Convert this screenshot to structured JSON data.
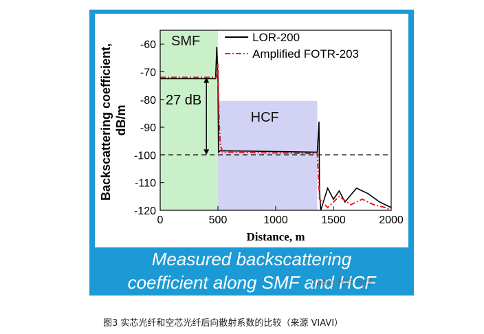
{
  "chart_data": {
    "type": "line",
    "ylabel_line1": "Backscattering coefficient,",
    "ylabel_line2": "dB/m",
    "xlabel": "Distance, m",
    "xlim": [
      0,
      2000
    ],
    "ylim": [
      -120,
      -55
    ],
    "xticks": [
      0,
      500,
      1000,
      1500,
      2000
    ],
    "yticks": [
      -60,
      -70,
      -80,
      -90,
      -100,
      -110,
      -120
    ],
    "legend_position": "top-right",
    "grid": false,
    "regions": [
      {
        "name": "SMF",
        "x0": 0,
        "x1": 500,
        "color": "#c9f0c9"
      },
      {
        "name": "HCF",
        "x0": 500,
        "x1": 1360,
        "color": "#d2d2f5"
      }
    ],
    "reference_level": -100,
    "annotation": {
      "text": "27 dB",
      "y_top": -72,
      "y_bottom": -100,
      "x": 400
    },
    "series": [
      {
        "name": "LOR-200",
        "color": "#000000",
        "style": "solid",
        "points": [
          [
            0,
            -72.5
          ],
          [
            480,
            -72.5
          ],
          [
            490,
            -61
          ],
          [
            500,
            -72.5
          ],
          [
            505,
            -99
          ],
          [
            520,
            -98.5
          ],
          [
            1360,
            -99
          ],
          [
            1375,
            -88
          ],
          [
            1380,
            -113
          ],
          [
            1390,
            -120
          ],
          [
            1450,
            -112
          ],
          [
            1500,
            -116
          ],
          [
            1550,
            -113
          ],
          [
            1600,
            -117
          ],
          [
            1700,
            -112
          ],
          [
            1800,
            -114
          ],
          [
            1900,
            -117
          ],
          [
            2000,
            -119
          ]
        ]
      },
      {
        "name": "Amplified FOTR-203",
        "color": "#e02020",
        "style": "dashdot",
        "points": [
          [
            0,
            -72
          ],
          [
            490,
            -72
          ],
          [
            500,
            -67
          ],
          [
            510,
            -88
          ],
          [
            520,
            -96
          ],
          [
            540,
            -99
          ],
          [
            1360,
            -99.5
          ],
          [
            1380,
            -116
          ],
          [
            1450,
            -119
          ],
          [
            1550,
            -115
          ],
          [
            1650,
            -118
          ],
          [
            1750,
            -116
          ],
          [
            1850,
            -118
          ],
          [
            1950,
            -119
          ],
          [
            2000,
            -120
          ]
        ]
      }
    ]
  },
  "caption": {
    "line1": "Measured backscattering",
    "line2": "coefficient along SMF and HCF"
  },
  "watermark": "Cable 光纤 光缆",
  "figure_caption": "图3  实芯光纤和空芯光纤后向散射系数的比较（来源 VIAVI）"
}
